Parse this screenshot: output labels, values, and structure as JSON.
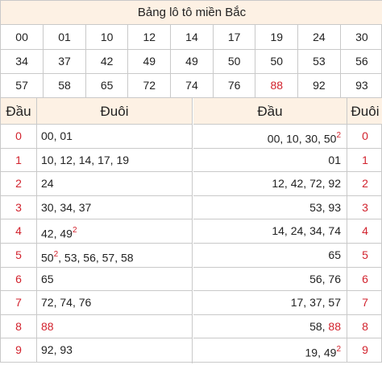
{
  "title": "Bảng lô tô miền Bắc",
  "grid": [
    [
      "00",
      "01",
      "10",
      "12",
      "14",
      "17",
      "19",
      "24",
      "30"
    ],
    [
      "34",
      "37",
      "42",
      "49",
      "49",
      "50",
      "50",
      "53",
      "56"
    ],
    [
      "57",
      "58",
      "65",
      "72",
      "74",
      "76",
      "88",
      "92",
      "93"
    ]
  ],
  "grid_highlight": [
    [
      2,
      6
    ]
  ],
  "left_table": {
    "head_label": "Đầu",
    "tail_label": "Đuôi",
    "rows": [
      {
        "head": "0",
        "tails": [
          {
            "v": "00"
          },
          {
            "v": "01"
          }
        ]
      },
      {
        "head": "1",
        "tails": [
          {
            "v": "10"
          },
          {
            "v": "12"
          },
          {
            "v": "14"
          },
          {
            "v": "17"
          },
          {
            "v": "19"
          }
        ]
      },
      {
        "head": "2",
        "tails": [
          {
            "v": "24"
          }
        ]
      },
      {
        "head": "3",
        "tails": [
          {
            "v": "30"
          },
          {
            "v": "34"
          },
          {
            "v": "37"
          }
        ]
      },
      {
        "head": "4",
        "tails": [
          {
            "v": "42"
          },
          {
            "v": "49",
            "sup": "2"
          }
        ]
      },
      {
        "head": "5",
        "tails": [
          {
            "v": "50",
            "sup": "2"
          },
          {
            "v": "53"
          },
          {
            "v": "56"
          },
          {
            "v": "57"
          },
          {
            "v": "58"
          }
        ]
      },
      {
        "head": "6",
        "tails": [
          {
            "v": "65"
          }
        ]
      },
      {
        "head": "7",
        "tails": [
          {
            "v": "72"
          },
          {
            "v": "74"
          },
          {
            "v": "76"
          }
        ]
      },
      {
        "head": "8",
        "tails": [
          {
            "v": "88",
            "red": true
          }
        ]
      },
      {
        "head": "9",
        "tails": [
          {
            "v": "92"
          },
          {
            "v": "93"
          }
        ]
      }
    ]
  },
  "right_table": {
    "head_label": "Đầu",
    "tail_label": "Đuôi",
    "rows": [
      {
        "tail": "0",
        "heads": [
          {
            "v": "00"
          },
          {
            "v": "10"
          },
          {
            "v": "30"
          },
          {
            "v": "50",
            "sup": "2"
          }
        ]
      },
      {
        "tail": "1",
        "heads": [
          {
            "v": "01"
          }
        ]
      },
      {
        "tail": "2",
        "heads": [
          {
            "v": "12"
          },
          {
            "v": "42"
          },
          {
            "v": "72"
          },
          {
            "v": "92"
          }
        ]
      },
      {
        "tail": "3",
        "heads": [
          {
            "v": "53"
          },
          {
            "v": "93"
          }
        ]
      },
      {
        "tail": "4",
        "heads": [
          {
            "v": "14"
          },
          {
            "v": "24"
          },
          {
            "v": "34"
          },
          {
            "v": "74"
          }
        ]
      },
      {
        "tail": "5",
        "heads": [
          {
            "v": "65"
          }
        ]
      },
      {
        "tail": "6",
        "heads": [
          {
            "v": "56"
          },
          {
            "v": "76"
          }
        ]
      },
      {
        "tail": "7",
        "heads": [
          {
            "v": "17"
          },
          {
            "v": "37"
          },
          {
            "v": "57"
          }
        ]
      },
      {
        "tail": "8",
        "heads": [
          {
            "v": "58"
          },
          {
            "v": "88",
            "red": true
          }
        ]
      },
      {
        "tail": "9",
        "heads": [
          {
            "v": "19"
          },
          {
            "v": "49",
            "sup": "2"
          }
        ]
      }
    ]
  },
  "colors": {
    "accent_red": "#d2222d",
    "header_bg": "#fdf1e4",
    "border": "#c9c9c9"
  }
}
